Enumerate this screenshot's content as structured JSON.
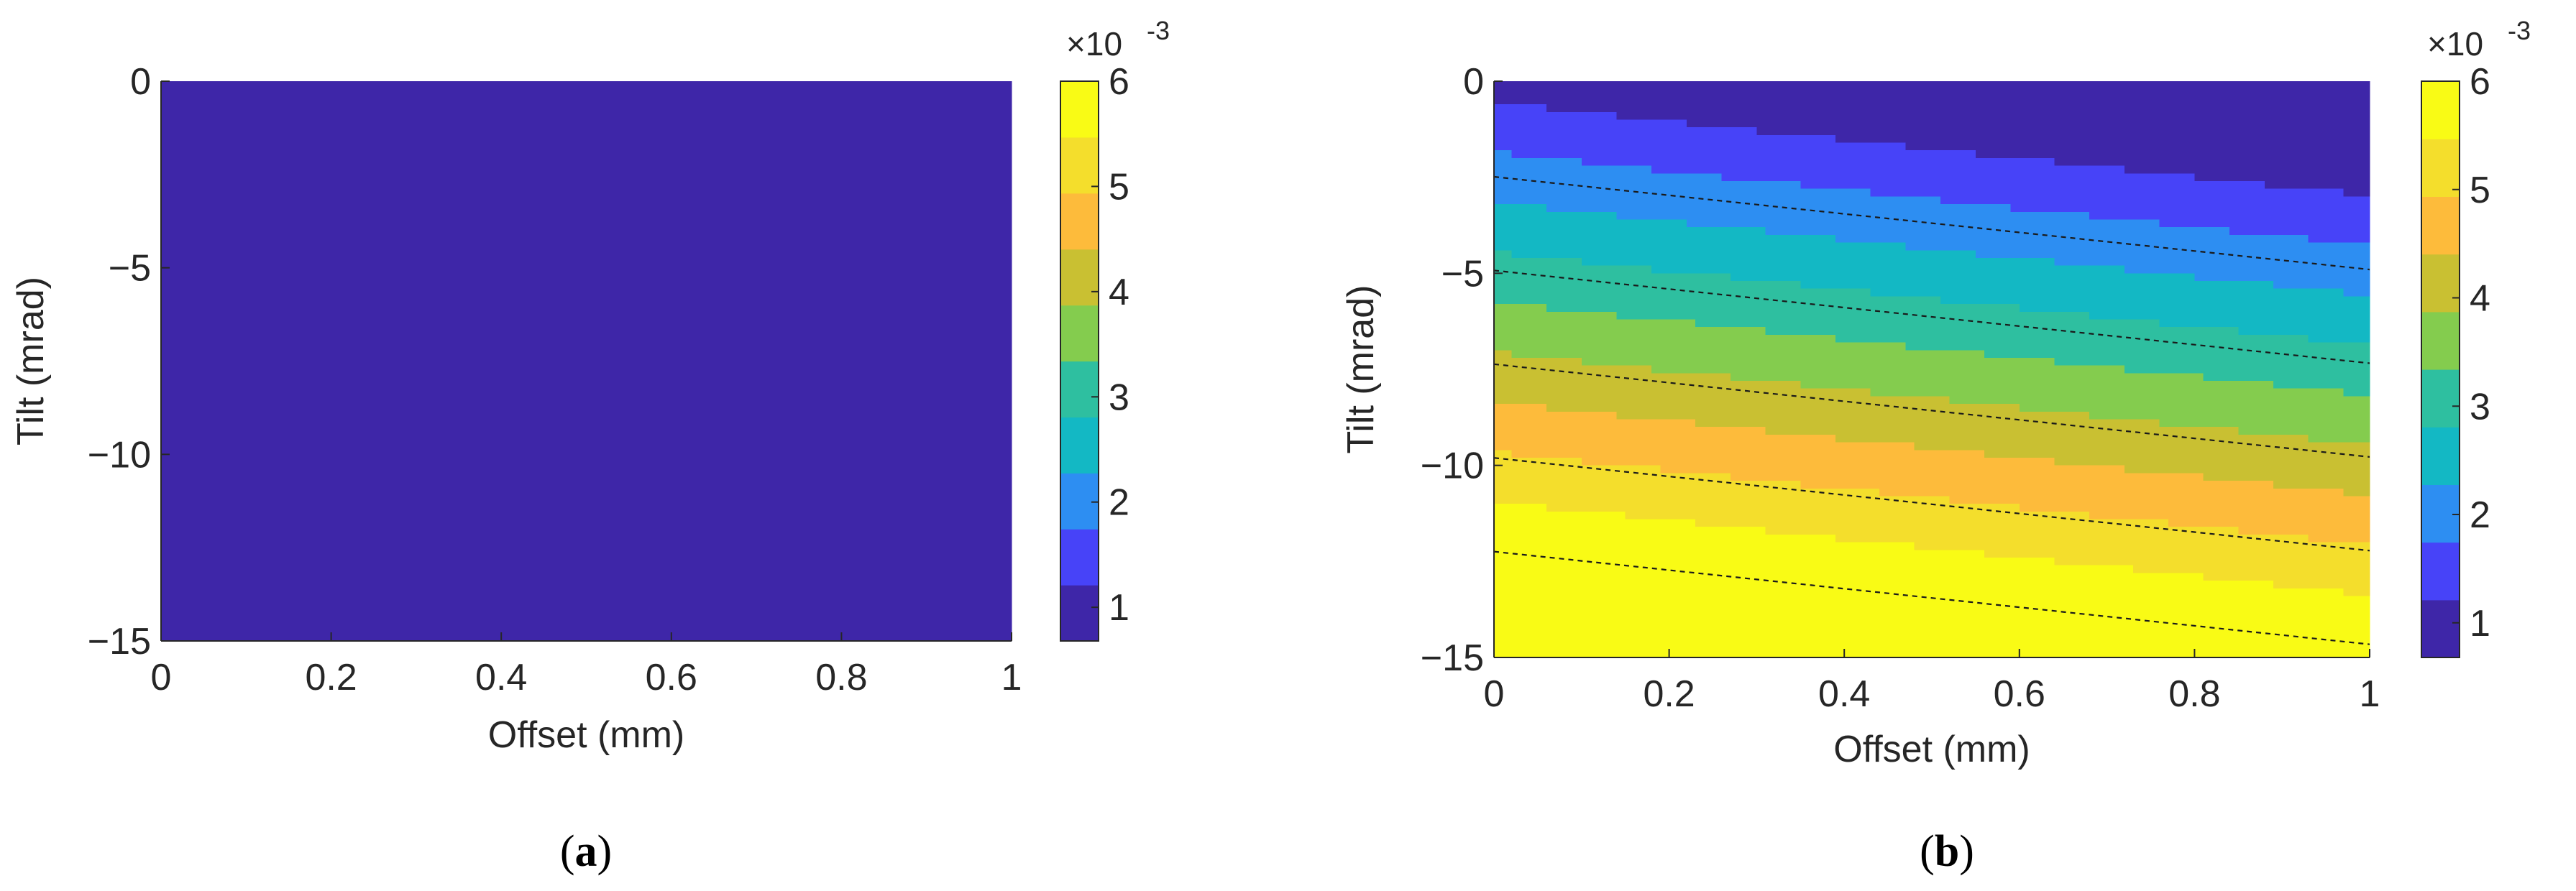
{
  "chart_data": [
    {
      "type": "contour",
      "panel_label": "(a)",
      "panel_letter": "a",
      "xlabel": "Offset (mm)",
      "ylabel": "Tilt (mrad)",
      "xlim": [
        0,
        1
      ],
      "ylim": [
        -15,
        0
      ],
      "xticks": [
        "0",
        "0.2",
        "0.4",
        "0.6",
        "0.8",
        "1"
      ],
      "yticks": [
        "0",
        "−5",
        "−10",
        "−15"
      ],
      "colorbar": {
        "ticks": [
          "1",
          "2",
          "3",
          "4",
          "5",
          "6"
        ],
        "range": [
          0.00068,
          0.006
        ],
        "exponent_label": "×10",
        "exponent_value": "-3"
      },
      "field": {
        "left": -0.00044,
        "slope_y": 0.0004,
        "slope_xy": 6e-05,
        "slope_x": 0.00033
      },
      "contour_levels": [
        0.0009,
        0.0014,
        0.0019,
        0.0024,
        0.0029,
        0.0034,
        0.0039,
        0.0044,
        0.0049,
        0.0054,
        0.0059
      ],
      "grid": false
    },
    {
      "type": "contour",
      "panel_label": "(b)",
      "panel_letter": "b",
      "xlabel": "Offset (mm)",
      "ylabel": "Tilt (mrad)",
      "xlim": [
        0,
        1
      ],
      "ylim": [
        -15,
        0
      ],
      "xticks": [
        "0",
        "0.2",
        "0.4",
        "0.6",
        "0.8",
        "1"
      ],
      "yticks": [
        "0",
        "−5",
        "−10",
        "−15"
      ],
      "colorbar": {
        "ticks": [
          "1",
          "2",
          "3",
          "4",
          "5",
          "6"
        ],
        "range": [
          0.00068,
          0.006
        ],
        "exponent_label": "×10",
        "exponent_value": "-3"
      },
      "field": {
        "left": 0.00098,
        "slope_y": -0.00041,
        "slope_xy": 0,
        "slope_x": -0.00099
      },
      "contour_levels": [
        0.002,
        0.003,
        0.004,
        0.005,
        0.006
      ],
      "grid": false
    }
  ],
  "colormap": [
    "#3e26a8",
    "#4743f8",
    "#2d8ef2",
    "#13b8c4",
    "#2ebfa0",
    "#84cc4e",
    "#c9c032",
    "#fdbb3b",
    "#f4de2c",
    "#f9fb15"
  ]
}
